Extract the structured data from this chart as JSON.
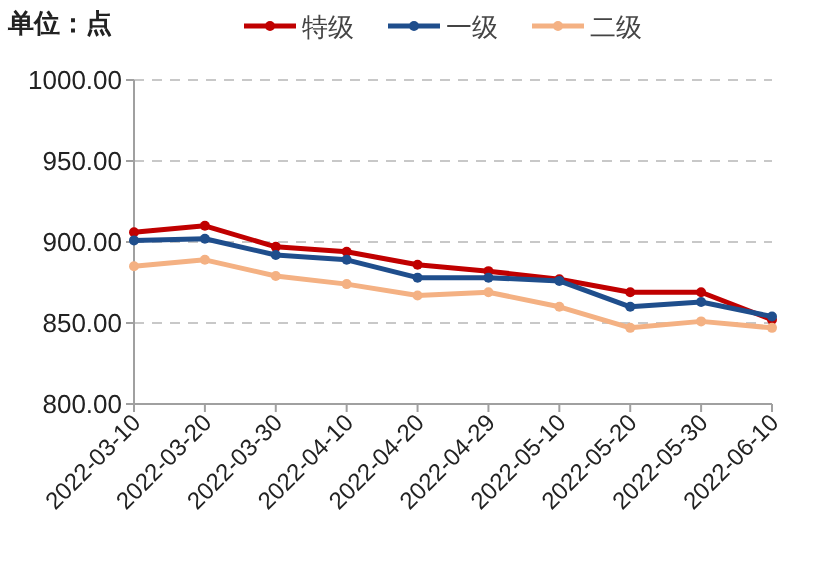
{
  "chart_data": {
    "type": "line",
    "ylabel": "单位：点",
    "categories": [
      "2022-03-10",
      "2022-03-20",
      "2022-03-30",
      "2022-04-10",
      "2022-04-20",
      "2022-04-29",
      "2022-05-10",
      "2022-05-20",
      "2022-05-30",
      "2022-06-10"
    ],
    "series": [
      {
        "name": "特级",
        "color": "#c00000",
        "values": [
          906,
          910,
          897,
          894,
          886,
          882,
          877,
          869,
          869,
          852
        ]
      },
      {
        "name": "一级",
        "color": "#1f4e8c",
        "values": [
          901,
          902,
          892,
          889,
          878,
          878,
          876,
          860,
          863,
          854
        ]
      },
      {
        "name": "二级",
        "color": "#f4b183",
        "values": [
          885,
          889,
          879,
          874,
          867,
          869,
          860,
          847,
          851,
          847
        ]
      }
    ],
    "ylim": [
      800,
      1000
    ],
    "yticks": [
      {
        "value": 800,
        "label": "800.00"
      },
      {
        "value": 850,
        "label": "850.00"
      },
      {
        "value": 900,
        "label": "900.00"
      },
      {
        "value": 950,
        "label": "950.00"
      },
      {
        "value": 1000,
        "label": "1000.00"
      }
    ],
    "grid": "y",
    "legend": "top",
    "marker": "circle",
    "line_style": "solid"
  }
}
